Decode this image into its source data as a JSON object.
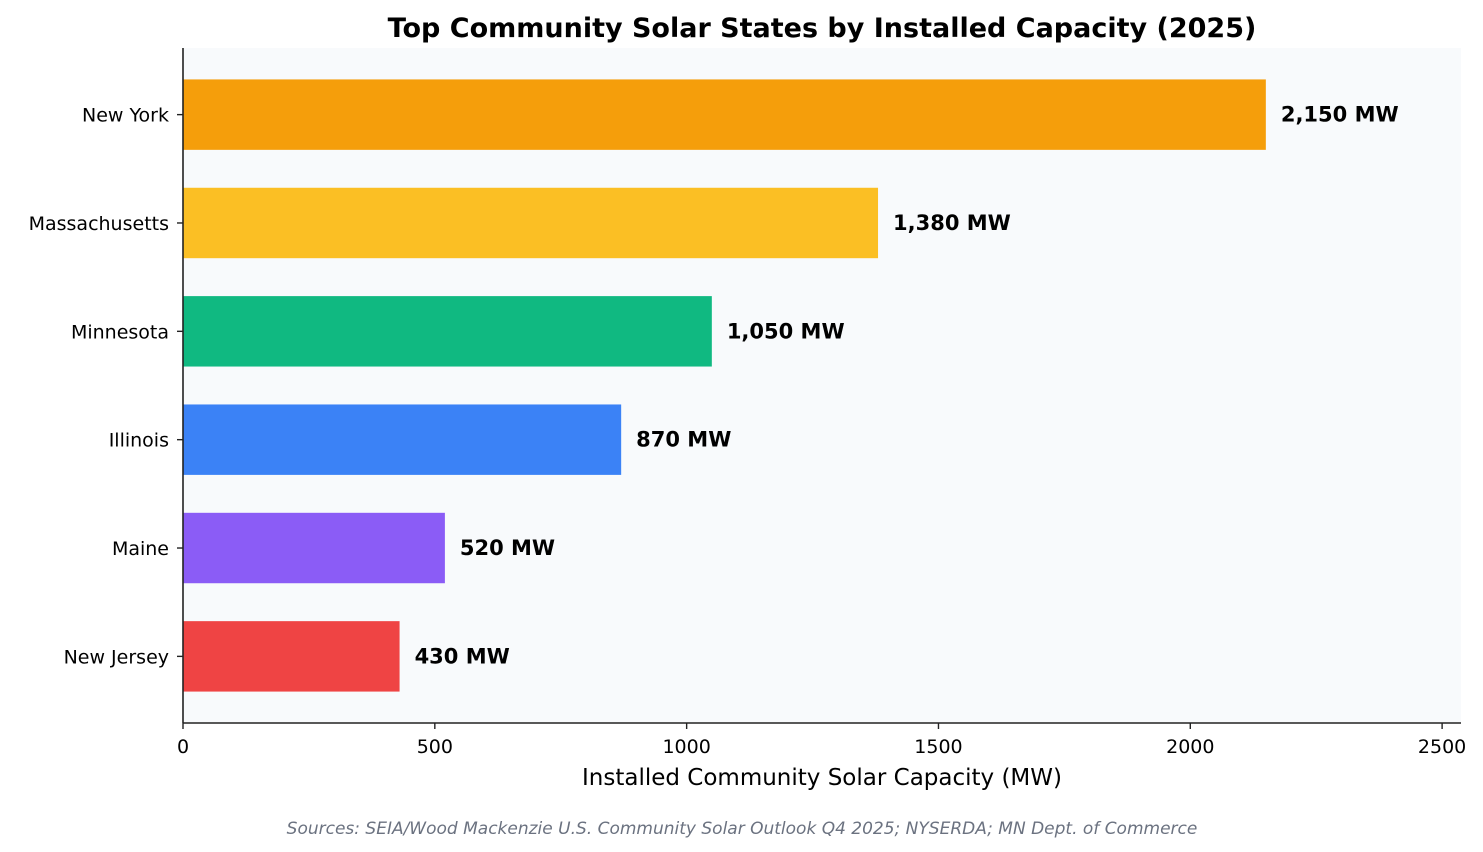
{
  "chart_data": {
    "type": "bar",
    "orientation": "horizontal",
    "title": "Top Community Solar States by Installed Capacity (2025)",
    "xlabel": "Installed Community Solar Capacity (MW)",
    "ylabel": "",
    "categories": [
      "New York",
      "Massachusetts",
      "Minnesota",
      "Illinois",
      "Maine",
      "New Jersey"
    ],
    "values": [
      2150,
      1380,
      1050,
      870,
      520,
      430
    ],
    "data_labels": [
      "2,150 MW",
      "1,380 MW",
      "1,050 MW",
      "870 MW",
      "520 MW",
      "430 MW"
    ],
    "colors": [
      "#f59e0b",
      "#fbbf24",
      "#10b981",
      "#3b82f6",
      "#8b5cf6",
      "#ef4444"
    ],
    "xlim": [
      0,
      2537.5
    ],
    "xticks": [
      0,
      500,
      1000,
      1500,
      2000,
      2500
    ],
    "grid": false,
    "plot_background": "#f8fafc",
    "source_note": "Sources: SEIA/Wood Mackenzie U.S. Community Solar Outlook Q4 2025; NYSERDA; MN Dept. of Commerce"
  }
}
